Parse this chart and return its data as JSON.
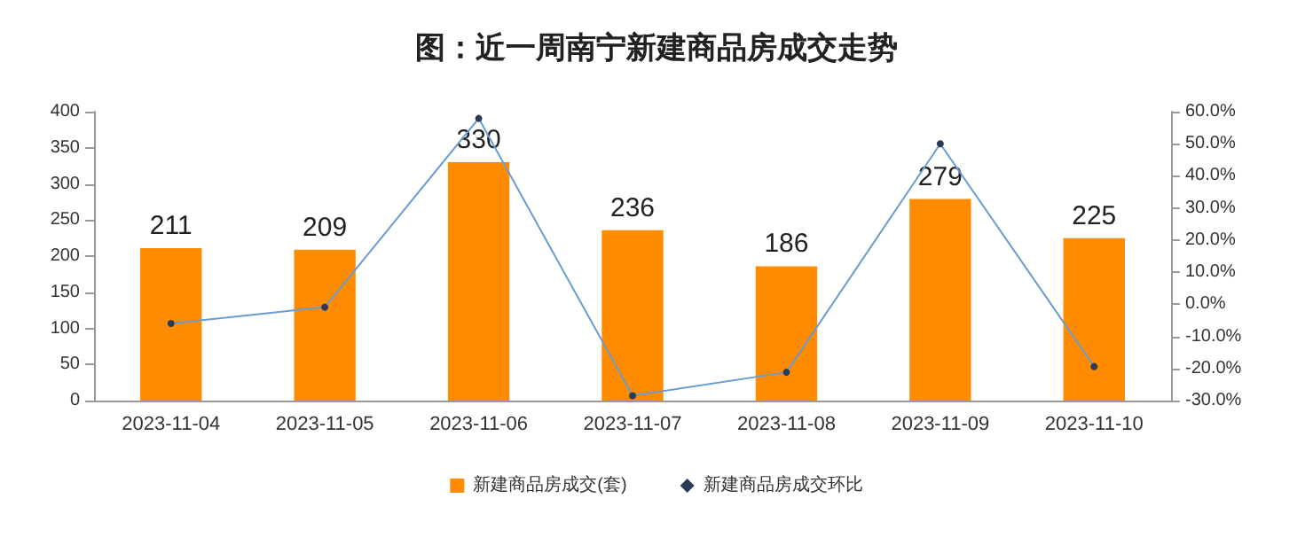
{
  "chart_data": {
    "type": "bar",
    "title": "图：近一周南宁新建商品房成交走势",
    "categories": [
      "2023-11-04",
      "2023-11-05",
      "2023-11-06",
      "2023-11-07",
      "2023-11-08",
      "2023-11-09",
      "2023-11-10"
    ],
    "series": [
      {
        "name": "新建商品房成交(套)",
        "color": "#ff8c00",
        "values": [
          211,
          209,
          330,
          236,
          186,
          279,
          225
        ],
        "value_labels": [
          "211",
          "209",
          "330",
          "236",
          "186",
          "279",
          "225"
        ]
      },
      {
        "name": "新建商品房成交环比",
        "type": "line",
        "axis": "y2",
        "color": "#6a9bd1",
        "marker": "circle",
        "values": [
          -6,
          -0.9,
          57.9,
          -28.5,
          -21.2,
          50,
          -19.4
        ]
      }
    ],
    "ylim": [
      0,
      400
    ],
    "yticks": [
      0,
      50,
      100,
      150,
      200,
      250,
      300,
      350,
      400
    ],
    "y2lim": [
      -30,
      60
    ],
    "y2ticks": [
      {
        "value": -30,
        "label": "-30.0%"
      },
      {
        "value": -20,
        "label": "-20.0%"
      },
      {
        "value": -10,
        "label": "-10.0%"
      },
      {
        "value": 0,
        "label": "0.0%"
      },
      {
        "value": 10,
        "label": "10.0%"
      },
      {
        "value": 20,
        "label": "20.0%"
      },
      {
        "value": 30,
        "label": "30.0%"
      },
      {
        "value": 40,
        "label": "40.0%"
      },
      {
        "value": 50,
        "label": "50.0%"
      },
      {
        "value": 60,
        "label": "60.0%"
      }
    ],
    "legend": "bottom",
    "grid": false
  }
}
